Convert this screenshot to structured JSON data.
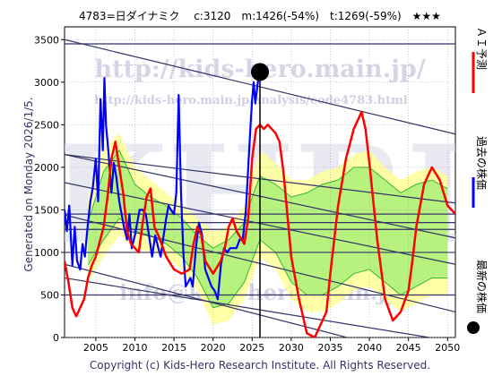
{
  "header": {
    "title": "4783=日ダイナミク　 c:3120　m:1426(-54%)　t:1269(-59%)　★★★"
  },
  "side_note": "Generated on Monday 2026/1/5.",
  "watermarks": {
    "url_big": "http://kids-hero.main.jp/",
    "url_small": "http://kids-hero.main.jp/analysis/code4783.html",
    "logo": "KHRI",
    "mail": "info@kids-hero.main.jp"
  },
  "copyright": "Copyright (c) Kids-Hero Research Institute. All Rights Reserved.",
  "legend": [
    {
      "label": "ＡＩ予測",
      "color": "#ff0000",
      "marker": "line"
    },
    {
      "label": "過去の株価",
      "color": "#0000ff",
      "marker": "line"
    },
    {
      "label": "最新の株価",
      "color": "#000000",
      "marker": "dot"
    }
  ],
  "chart_data": {
    "type": "line",
    "xlim": [
      2001,
      2051
    ],
    "ylim": [
      0,
      3650
    ],
    "xticks": [
      2005,
      2010,
      2015,
      2020,
      2025,
      2030,
      2035,
      2040,
      2045,
      2050
    ],
    "yticks": [
      0,
      500,
      1000,
      1500,
      2000,
      2500,
      3000,
      3500
    ],
    "grid": true,
    "colors": {
      "ai": "#ff0000",
      "past": "#0000ff",
      "latest": "#000000",
      "band_outer": "#ffff99",
      "band_inner": "#aaee77",
      "band_line": "#33bb33",
      "trend": "#333366",
      "horizontal": "#333366",
      "grid": "#999999"
    },
    "latest": {
      "x": 2026.0,
      "y": 3120
    },
    "trend_lines": [
      {
        "x": [
          2001,
          2051
        ],
        "y": [
          3500,
          2390
        ]
      },
      {
        "x": [
          2001,
          2051
        ],
        "y": [
          2150,
          1170
        ]
      },
      {
        "x": [
          2001,
          2051
        ],
        "y": [
          1820,
          860
        ]
      },
      {
        "x": [
          2001,
          2051
        ],
        "y": [
          1440,
          300
        ]
      },
      {
        "x": [
          2001,
          2051
        ],
        "y": [
          860,
          -330
        ]
      },
      {
        "x": [
          2001,
          2051
        ],
        "y": [
          700,
          -50
        ]
      },
      {
        "x": [
          2001,
          2051
        ],
        "y": [
          2150,
          1580
        ]
      }
    ],
    "horizontal_lines": [
      3450,
      1450,
      1350,
      1270,
      1000,
      500
    ],
    "series": [
      {
        "key": "past",
        "x": [
          2001.0,
          2001.3,
          2001.6,
          2002.0,
          2002.3,
          2002.6,
          2003.0,
          2003.3,
          2003.6,
          2004.0,
          2004.3,
          2004.6,
          2005.0,
          2005.3,
          2005.6,
          2005.9,
          2006.1,
          2006.3,
          2006.6,
          2007.0,
          2007.3,
          2007.6,
          2008.0,
          2008.3,
          2008.6,
          2009.0,
          2009.3,
          2009.6,
          2010.0,
          2010.3,
          2010.6,
          2011.0,
          2011.4,
          2011.8,
          2012.2,
          2012.6,
          2013.0,
          2013.3,
          2013.6,
          2014.0,
          2014.3,
          2014.6,
          2015.0,
          2015.3,
          2015.6,
          2015.9,
          2016.2,
          2016.5,
          2016.8,
          2017.1,
          2017.4,
          2017.8,
          2018.2,
          2018.6,
          2019.0,
          2019.4,
          2019.8,
          2020.2,
          2020.6,
          2021.0,
          2021.4,
          2021.8,
          2022.2,
          2022.6,
          2023.0,
          2023.4,
          2023.8,
          2024.2,
          2024.5,
          2024.8,
          2025.0,
          2025.2,
          2025.4,
          2025.6,
          2025.8,
          2026.0
        ],
        "y": [
          1500,
          1250,
          1550,
          850,
          1300,
          900,
          800,
          1100,
          950,
          1350,
          1600,
          1750,
          2100,
          1600,
          2800,
          2200,
          3050,
          2500,
          2200,
          1700,
          2050,
          1900,
          1600,
          1450,
          1300,
          1150,
          1450,
          1050,
          1200,
          1350,
          1500,
          1500,
          1450,
          1200,
          950,
          1200,
          1050,
          950,
          1150,
          1400,
          1550,
          1500,
          1450,
          1700,
          2850,
          1700,
          1000,
          600,
          650,
          700,
          600,
          1050,
          1350,
          1200,
          800,
          700,
          600,
          550,
          450,
          850,
          1050,
          1000,
          1050,
          1050,
          1050,
          1150,
          1150,
          1500,
          2000,
          2500,
          2800,
          3000,
          2750,
          2900,
          3050,
          3120
        ]
      },
      {
        "key": "ai",
        "x": [
          2001.0,
          2001.5,
          2002.0,
          2002.5,
          2003.0,
          2003.5,
          2004.0,
          2004.5,
          2005.0,
          2006.0,
          2006.5,
          2007.0,
          2007.5,
          2008.0,
          2008.5,
          2009.0,
          2009.5,
          2010.0,
          2010.5,
          2011.0,
          2011.5,
          2012.0,
          2012.5,
          2013.0,
          2014.0,
          2015.0,
          2016.0,
          2017.0,
          2017.5,
          2018.0,
          2018.5,
          2019.0,
          2020.0,
          2021.0,
          2021.5,
          2022.0,
          2022.5,
          2023.0,
          2024.0,
          2024.5,
          2025.0,
          2025.5,
          2026.0,
          2026.5,
          2027.0,
          2027.5,
          2028.0,
          2028.5,
          2029.0,
          2029.5,
          2030.0,
          2031.0,
          2032.0,
          2033.0,
          2034.0,
          2034.5,
          2035.0,
          2036.0,
          2037.0,
          2038.0,
          2039.0,
          2039.5,
          2040.0,
          2041.0,
          2042.0,
          2043.0,
          2044.0,
          2045.0,
          2045.5,
          2046.0,
          2047.0,
          2048.0,
          2049.0,
          2050.0,
          2051.0
        ],
        "y": [
          900,
          650,
          350,
          250,
          350,
          450,
          700,
          850,
          950,
          1300,
          1650,
          2100,
          2300,
          2000,
          1700,
          1250,
          1100,
          1050,
          1000,
          1350,
          1650,
          1750,
          1300,
          1200,
          950,
          800,
          750,
          800,
          1100,
          1300,
          1200,
          900,
          750,
          900,
          1050,
          1300,
          1400,
          1250,
          1100,
          1400,
          2100,
          2450,
          2500,
          2450,
          2500,
          2450,
          2400,
          2300,
          1950,
          1450,
          950,
          450,
          50,
          0,
          200,
          300,
          750,
          1550,
          2100,
          2450,
          2650,
          2450,
          2050,
          1150,
          450,
          200,
          300,
          550,
          900,
          1300,
          1800,
          2000,
          1850,
          1550,
          1450
        ]
      }
    ],
    "band": {
      "x": [
        2004,
        2006,
        2008,
        2010,
        2012,
        2014,
        2016,
        2018,
        2020,
        2022,
        2024,
        2025,
        2026,
        2028,
        2030,
        2032,
        2034,
        2036,
        2038,
        2040,
        2042,
        2044,
        2046,
        2048,
        2050
      ],
      "outer_high": [
        1650,
        2200,
        2400,
        2000,
        1850,
        1700,
        1550,
        1400,
        1250,
        1300,
        1550,
        1900,
        2200,
        2050,
        1850,
        1850,
        1950,
        2000,
        2150,
        2200,
        2000,
        1850,
        1950,
        2000,
        1900
      ],
      "outer_low": [
        650,
        950,
        1200,
        1050,
        1000,
        950,
        800,
        550,
        150,
        200,
        450,
        700,
        950,
        800,
        450,
        300,
        300,
        400,
        550,
        600,
        450,
        300,
        400,
        500,
        500
      ],
      "inner_high": [
        1350,
        1950,
        2200,
        1800,
        1650,
        1550,
        1400,
        1200,
        1050,
        1150,
        1350,
        1650,
        1900,
        1800,
        1650,
        1700,
        1800,
        1850,
        2000,
        2000,
        1850,
        1700,
        1800,
        1850,
        1750
      ],
      "inner_low": [
        850,
        1150,
        1400,
        1250,
        1200,
        1100,
        950,
        700,
        350,
        400,
        650,
        900,
        1150,
        1000,
        650,
        500,
        500,
        600,
        750,
        800,
        650,
        500,
        600,
        700,
        700
      ]
    }
  }
}
